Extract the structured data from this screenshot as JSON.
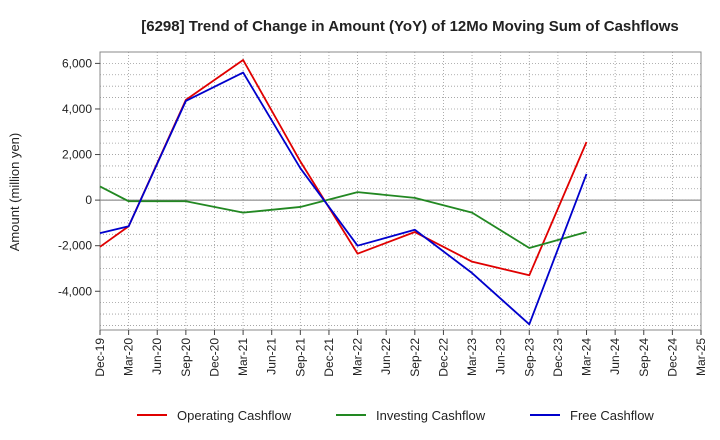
{
  "chart_data": {
    "type": "line",
    "title": "[6298]  Trend of Change in Amount (YoY) of 12Mo Moving Sum of Cashflows",
    "xlabel": "",
    "ylabel": "Amount (million yen)",
    "ylim": [
      -5700,
      6500
    ],
    "yticks": [
      -4000,
      -2000,
      0,
      2000,
      4000,
      6000
    ],
    "ytick_labels": [
      "-4,000",
      "-2,000",
      "0",
      "2,000",
      "4,000",
      "6,000"
    ],
    "categories": [
      "Dec-19",
      "Mar-20",
      "Jun-20",
      "Sep-20",
      "Dec-20",
      "Mar-21",
      "Jun-21",
      "Sep-21",
      "Dec-21",
      "Mar-22",
      "Jun-22",
      "Sep-22",
      "Dec-22",
      "Mar-23",
      "Jun-23",
      "Sep-23",
      "Dec-23",
      "Mar-24",
      "Jun-24",
      "Sep-24",
      "Dec-24",
      "Mar-25"
    ],
    "grid": true,
    "legend_position": "bottom",
    "series": [
      {
        "name": "Operating Cashflow",
        "color": "#e00000",
        "values": [
          -2050,
          -1150,
          null,
          4400,
          null,
          6150,
          null,
          1700,
          null,
          -2350,
          null,
          -1400,
          null,
          -2700,
          null,
          -3300,
          null,
          2550,
          null,
          null,
          null,
          null
        ]
      },
      {
        "name": "Investing Cashflow",
        "color": "#228822",
        "values": [
          600,
          -50,
          null,
          -50,
          null,
          -550,
          null,
          -300,
          null,
          350,
          null,
          100,
          null,
          -550,
          null,
          -2100,
          null,
          -1400,
          null,
          null,
          null,
          null
        ]
      },
      {
        "name": "Free Cashflow",
        "color": "#0000cc",
        "values": [
          -1450,
          -1150,
          null,
          4350,
          null,
          5600,
          null,
          1400,
          null,
          -2000,
          null,
          -1300,
          null,
          -3200,
          null,
          -5450,
          null,
          1150,
          null,
          null,
          null,
          null
        ]
      }
    ]
  }
}
